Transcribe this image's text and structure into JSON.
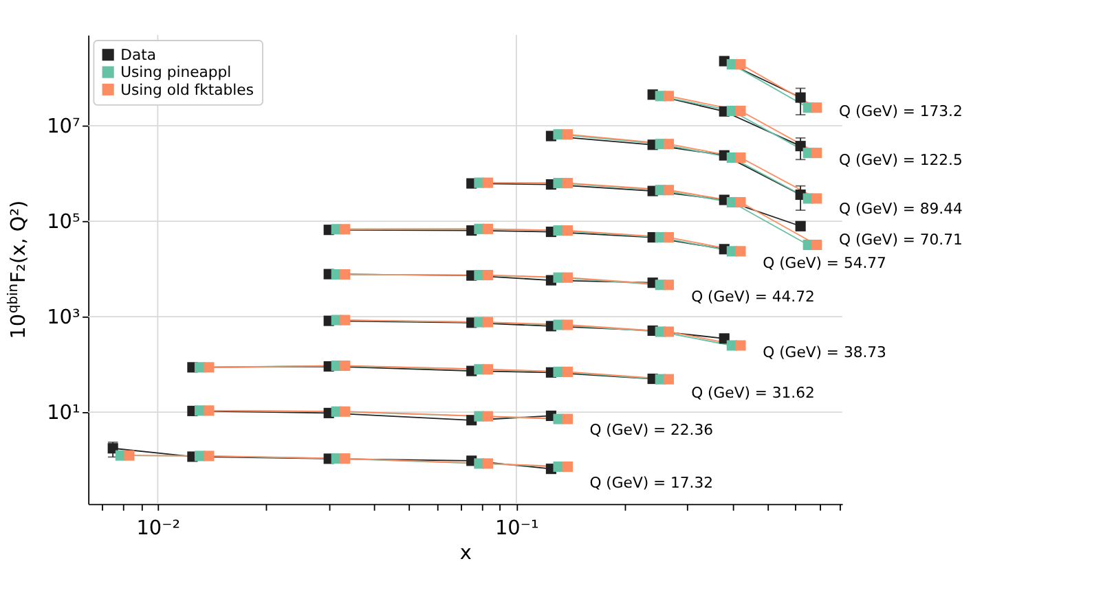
{
  "chart_data": {
    "type": "line",
    "xlabel": "x",
    "ylabel": "10$^{qbin}$F₂(x, Q²)",
    "log": "xy",
    "grid": true,
    "legend": "top left",
    "marker": "square",
    "line_style": "solid",
    "xlim": [
      0.0064,
      0.81
    ],
    "xticks": [
      {
        "value": 0.007,
        "label": null
      },
      {
        "value": 0.008,
        "label": null
      },
      {
        "value": 0.009,
        "label": null
      },
      {
        "value": 0.01,
        "label": "10⁻²"
      },
      {
        "value": 0.02,
        "label": null
      },
      {
        "value": 0.03,
        "label": null
      },
      {
        "value": 0.04,
        "label": null
      },
      {
        "value": 0.05,
        "label": null
      },
      {
        "value": 0.06,
        "label": null
      },
      {
        "value": 0.07,
        "label": null
      },
      {
        "value": 0.08,
        "label": null
      },
      {
        "value": 0.09,
        "label": null
      },
      {
        "value": 0.1,
        "label": "10⁻¹"
      },
      {
        "value": 0.2,
        "label": null
      },
      {
        "value": 0.3,
        "label": null
      },
      {
        "value": 0.4,
        "label": null
      },
      {
        "value": 0.5,
        "label": null
      },
      {
        "value": 0.6,
        "label": null
      },
      {
        "value": 0.7,
        "label": null
      },
      {
        "value": 0.8,
        "label": null
      }
    ],
    "ylim": [
      0.12,
      800000000
    ],
    "yticks": [
      {
        "value": 10,
        "label": "10¹"
      },
      {
        "value": 1000,
        "label": "10³"
      },
      {
        "value": 100000,
        "label": "10⁵"
      },
      {
        "value": 10000000,
        "label": "10⁷"
      }
    ],
    "series": [
      {
        "name": "Data",
        "color": "#222222",
        "x": [
          0.38,
          0.62
        ],
        "values": [
          226000000,
          39000000
        ],
        "errors": [
          null,
          22000000
        ]
      },
      {
        "name": "Using pineappl",
        "color": "#66c2a5",
        "x": [
          0.399,
          0.651
        ],
        "values": [
          194000000,
          24000000
        ]
      },
      {
        "name": "Using old fktables",
        "color": "#fc8d62",
        "x": [
          0.422,
          0.688
        ],
        "values": [
          194000000,
          24000000
        ]
      },
      {
        "color": "#222222",
        "x": [
          0.24,
          0.38,
          0.62
        ],
        "values": [
          45000000,
          20000000,
          3760000
        ],
        "errors": [
          null,
          null,
          1800000
        ]
      },
      {
        "color": "#66c2a5",
        "x": [
          0.252,
          0.399,
          0.651
        ],
        "values": [
          42000000,
          20500000,
          2700000
        ]
      },
      {
        "color": "#fc8d62",
        "x": [
          0.266,
          0.422,
          0.688
        ],
        "values": [
          42000000,
          20500000,
          2700000
        ]
      },
      {
        "color": "#222222",
        "x": [
          0.125,
          0.24,
          0.38,
          0.62
        ],
        "values": [
          6100000,
          4000000,
          2400000,
          360000
        ],
        "errors": [
          null,
          null,
          null,
          190000
        ]
      },
      {
        "color": "#66c2a5",
        "x": [
          0.131,
          0.252,
          0.399,
          0.651
        ],
        "values": [
          6600000,
          4150000,
          2150000,
          300000
        ]
      },
      {
        "color": "#fc8d62",
        "x": [
          0.139,
          0.266,
          0.422,
          0.688
        ],
        "values": [
          6600000,
          4150000,
          2150000,
          300000
        ]
      },
      {
        "color": "#222222",
        "x": [
          0.075,
          0.125,
          0.24,
          0.38,
          0.62
        ],
        "values": [
          620000,
          590000,
          430000,
          280000,
          79000
        ],
        "errors": [
          null,
          null,
          null,
          null,
          15000
        ]
      },
      {
        "color": "#66c2a5",
        "x": [
          0.0788,
          0.131,
          0.252,
          0.399,
          0.651
        ],
        "values": [
          640000,
          630000,
          450000,
          250000,
          32000
        ]
      },
      {
        "color": "#fc8d62",
        "x": [
          0.0833,
          0.139,
          0.266,
          0.422,
          0.688
        ],
        "values": [
          640000,
          630000,
          450000,
          250000,
          32000
        ]
      },
      {
        "color": "#222222",
        "x": [
          0.03,
          0.075,
          0.125,
          0.24,
          0.38
        ],
        "values": [
          66000,
          64000,
          60000,
          46000,
          26000
        ]
      },
      {
        "color": "#66c2a5",
        "x": [
          0.0315,
          0.0788,
          0.131,
          0.252,
          0.399
        ],
        "values": [
          68000,
          69000,
          64000,
          46000,
          23500
        ]
      },
      {
        "color": "#fc8d62",
        "x": [
          0.0333,
          0.0833,
          0.139,
          0.266,
          0.422
        ],
        "values": [
          68000,
          69000,
          64000,
          46000,
          23500
        ]
      },
      {
        "color": "#222222",
        "x": [
          0.03,
          0.075,
          0.125,
          0.24
        ],
        "values": [
          7800,
          7300,
          5800,
          5150
        ]
      },
      {
        "color": "#66c2a5",
        "x": [
          0.0315,
          0.0788,
          0.131,
          0.252
        ],
        "values": [
          7700,
          7450,
          6600,
          4650
        ]
      },
      {
        "color": "#fc8d62",
        "x": [
          0.0333,
          0.0833,
          0.139,
          0.266
        ],
        "values": [
          7700,
          7450,
          6600,
          4650
        ]
      },
      {
        "color": "#222222",
        "x": [
          0.03,
          0.075,
          0.125,
          0.24,
          0.38
        ],
        "values": [
          820,
          750,
          635,
          510,
          350
        ]
      },
      {
        "color": "#66c2a5",
        "x": [
          0.0315,
          0.0788,
          0.131,
          0.252,
          0.399
        ],
        "values": [
          850,
          770,
          675,
          485,
          250
        ]
      },
      {
        "color": "#fc8d62",
        "x": [
          0.0333,
          0.0833,
          0.139,
          0.266,
          0.422
        ],
        "values": [
          850,
          770,
          675,
          485,
          250
        ]
      },
      {
        "color": "#222222",
        "x": [
          0.0125,
          0.03,
          0.075,
          0.125,
          0.24
        ],
        "values": [
          87,
          91,
          73,
          68,
          50
        ]
      },
      {
        "color": "#66c2a5",
        "x": [
          0.0131,
          0.0315,
          0.0788,
          0.131,
          0.252
        ],
        "values": [
          87,
          94,
          79,
          70,
          49
        ]
      },
      {
        "color": "#fc8d62",
        "x": [
          0.0139,
          0.0333,
          0.0833,
          0.139,
          0.266
        ],
        "values": [
          87,
          94,
          79,
          70,
          49
        ]
      },
      {
        "color": "#222222",
        "x": [
          0.0125,
          0.03,
          0.075,
          0.125
        ],
        "values": [
          10.6,
          9.6,
          6.8,
          8.4
        ]
      },
      {
        "color": "#66c2a5",
        "x": [
          0.0131,
          0.0315,
          0.0788,
          0.131
        ],
        "values": [
          10.8,
          10.3,
          8.2,
          7.2
        ]
      },
      {
        "color": "#fc8d62",
        "x": [
          0.0139,
          0.0333,
          0.0833,
          0.139
        ],
        "values": [
          10.8,
          10.3,
          8.2,
          7.2
        ]
      },
      {
        "color": "#222222",
        "x": [
          0.0075,
          0.0125,
          0.03,
          0.075,
          0.125
        ],
        "values": [
          1.75,
          1.17,
          1.06,
          0.96,
          0.65
        ],
        "errors": [
          0.6,
          null,
          null,
          null,
          0.08
        ]
      },
      {
        "color": "#66c2a5",
        "x": [
          0.00788,
          0.0131,
          0.0315,
          0.0788,
          0.131
        ],
        "values": [
          1.24,
          1.21,
          1.07,
          0.84,
          0.72
        ]
      },
      {
        "color": "#fc8d62",
        "x": [
          0.00833,
          0.0139,
          0.0333,
          0.0833,
          0.139
        ],
        "values": [
          1.24,
          1.21,
          1.07,
          0.84,
          0.72
        ]
      }
    ],
    "annotations": [
      "Q (GeV) = 173.2",
      "Q (GeV) = 122.5",
      "Q (GeV) = 89.44",
      "Q (GeV) = 70.71",
      "Q (GeV) = 54.77",
      "Q (GeV) = 44.72",
      "Q (GeV) = 38.73",
      "Q (GeV) = 31.62",
      "Q (GeV) = 22.36",
      "Q (GeV) = 17.32"
    ]
  }
}
